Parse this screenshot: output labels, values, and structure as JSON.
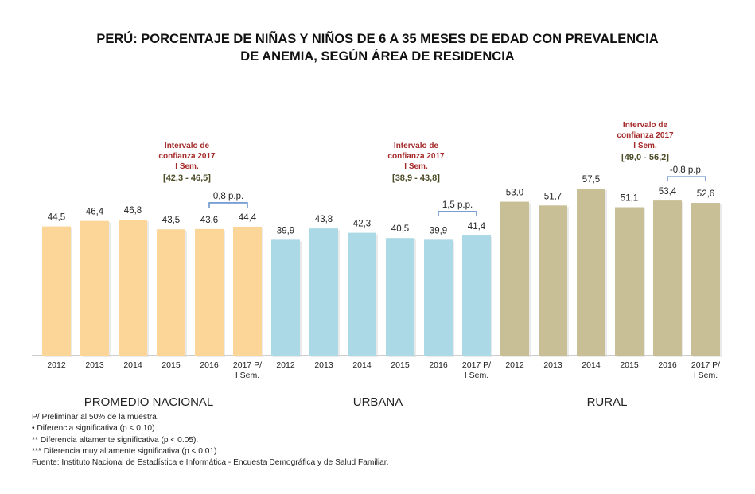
{
  "title_lines": [
    "PERÚ: PORCENTAJE DE NIÑAS Y NIÑOS DE 6 A 35 MESES DE EDAD CON PREVALENCIA",
    "DE ANEMIA, SEGÚN ÁREA DE RESIDENCIA"
  ],
  "chart_data": {
    "type": "bar",
    "title": "PERÚ: PORCENTAJE DE NIÑAS Y NIÑOS DE 6 A 35 MESES DE EDAD CON PREVALENCIA DE ANEMIA, SEGÚN ÁREA DE RESIDENCIA",
    "categories": [
      "2012",
      "2013",
      "2014",
      "2015",
      "2016",
      "2017 P/ I Sem."
    ],
    "series": [
      {
        "name": "PROMEDIO NACIONAL",
        "values": [
          44.5,
          46.4,
          46.8,
          43.5,
          43.6,
          44.4
        ],
        "labels": [
          "44,5",
          "46,4",
          "46,8",
          "43,5",
          "43,6",
          "44,4"
        ],
        "color": "#FCD698",
        "ci_title": [
          "Intervalo de",
          "confianza 2017",
          "I Sem."
        ],
        "ci_range": "[42,3 - 46,5]",
        "diff_label": "0,8 p.p."
      },
      {
        "name": "URBANA",
        "values": [
          39.9,
          43.8,
          42.3,
          40.5,
          39.9,
          41.4
        ],
        "labels": [
          "39,9",
          "43,8",
          "42,3",
          "40,5",
          "39,9",
          "41,4"
        ],
        "color": "#ABD9E6",
        "ci_title": [
          "Intervalo de",
          "confianza 2017",
          "I Sem."
        ],
        "ci_range": "[38,9 - 43,8]",
        "diff_label": "1,5 p.p."
      },
      {
        "name": "RURAL",
        "values": [
          53.0,
          51.7,
          57.5,
          51.1,
          53.4,
          52.6
        ],
        "labels": [
          "53,0",
          "51,7",
          "57,5",
          "51,1",
          "53,4",
          "52,6"
        ],
        "color": "#C9BF97",
        "ci_title": [
          "Intervalo de",
          "confianza 2017",
          "I Sem."
        ],
        "ci_range": "[49,0 - 56,2]",
        "diff_label": "-0,8 p.p."
      }
    ],
    "ylim": [
      0,
      60
    ],
    "xlabel": "",
    "ylabel": "",
    "grid": false,
    "legend": "none",
    "ci_title_color": "#A52A2A",
    "ci_range_color": "#4D4D2A",
    "bracket_color": "#4A7EC0"
  },
  "notes": [
    "P/ Preliminar al 50% de la muestra.",
    "•    Diferencia significativa (p < 0.10).",
    "**  Diferencia altamente significativa (p < 0.05).",
    "*** Diferencia muy altamente significativa (p < 0.01).",
    "Fuente: Instituto Nacional de Estadística e Informática - Encuesta Demográfica y de Salud Familiar."
  ]
}
